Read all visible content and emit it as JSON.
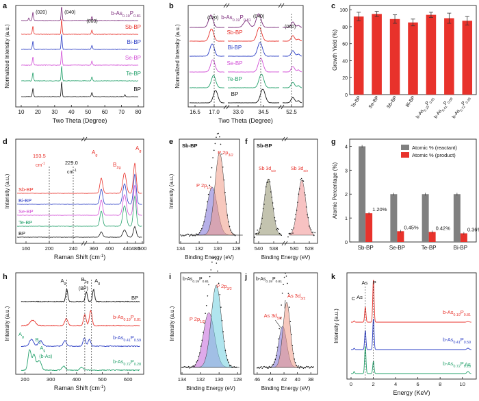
{
  "panels": {
    "a": {
      "letter": "a",
      "xlabel": "Two Theta (Degree)",
      "ylabel": "Normalized Intensity (a.u.)",
      "xticks": [
        "10",
        "20",
        "30",
        "40",
        "50",
        "60",
        "70",
        "80"
      ],
      "peak_labels": [
        "(020)",
        "(040)",
        "(060)"
      ],
      "traces": [
        {
          "label": "b-As",
          "sub1": "0.19",
          "mid": "P",
          "sub2": "0.81",
          "color": "#7a2a7a"
        },
        {
          "label": "Sb-BP",
          "color": "#e8322b"
        },
        {
          "label": "Bi-BP",
          "color": "#2a3cc4"
        },
        {
          "label": "Se-BP",
          "color": "#d24fd6"
        },
        {
          "label": "Te-BP",
          "color": "#22a06a"
        },
        {
          "label": "BP",
          "color": "#111111"
        }
      ]
    },
    "b": {
      "letter": "b",
      "xlabel": "Two Theta (Degree)",
      "ylabel": "Normalized Intensity (a.u.)",
      "xticks": [
        "16.5",
        "17.0",
        "33.0",
        "34.5",
        "52.5"
      ],
      "peak_labels": [
        "(020)",
        "(040)",
        "(060)"
      ],
      "traces": [
        {
          "label": "b-As",
          "sub1": "0.19",
          "mid": "P",
          "sub2": "0.81",
          "color": "#7a2a7a"
        },
        {
          "label": "Sb-BP",
          "color": "#e8322b"
        },
        {
          "label": "Bi-BP",
          "color": "#2a3cc4"
        },
        {
          "label": "Se-BP",
          "color": "#d24fd6"
        },
        {
          "label": "Te-BP",
          "color": "#22a06a"
        },
        {
          "label": "BP",
          "color": "#111111"
        }
      ]
    },
    "c": {
      "letter": "c",
      "ylabel": "Growth Yield (%)",
      "yticks": [
        "0",
        "20",
        "40",
        "60",
        "80",
        "100"
      ],
      "color": "#e8322b"
    },
    "d": {
      "letter": "d",
      "xlabel": "Raman Shift  (cm",
      "xlabel_sup": "-1",
      "xlabel_end": ")",
      "ylabel": "Intensity (a.u.)",
      "xticks": [
        "160",
        "200",
        "240",
        "360",
        "400",
        "440",
        "480",
        "500"
      ],
      "annotations": [
        "193.5",
        "cm",
        "229.0",
        "cm"
      ],
      "modes": [
        "A",
        "B",
        "A"
      ],
      "traces": [
        {
          "label": "Sb-BP",
          "color": "#e8322b"
        },
        {
          "label": "Bi-BP",
          "color": "#2a3cc4"
        },
        {
          "label": "Se-BP",
          "color": "#d24fd6"
        },
        {
          "label": "Te-BP",
          "color": "#22a06a"
        },
        {
          "label": "BP",
          "color": "#111111"
        }
      ]
    },
    "e": {
      "letter": "e",
      "sample": "Sb-BP",
      "xlabel": "Binding Energy (eV)",
      "ylabel": "Intensity (a.u.)",
      "xticks": [
        "134",
        "132",
        "130",
        "128"
      ],
      "peaks": [
        "P 2p",
        "P 2p"
      ],
      "subs": [
        "1/2",
        "3/2"
      ]
    },
    "f": {
      "letter": "f",
      "sample": "Sb-BP",
      "xlabel": "Binding Energy (eV)",
      "xticks": [
        "540",
        "538",
        "530",
        "528"
      ],
      "peaks": [
        "Sb 3d",
        "Sb 3d"
      ],
      "subs": [
        "5/2",
        "3/2"
      ]
    },
    "g": {
      "letter": "g",
      "ylabel": "Atomic Percentage (%)",
      "yticks": [
        "0",
        "1",
        "2",
        "3",
        "4"
      ],
      "legend": [
        "Atomic % (reactant)",
        "Atomic % (product)"
      ],
      "value_labels": [
        "1.20%",
        "0.45%",
        "0.42%",
        "0.36%"
      ]
    },
    "h": {
      "letter": "h",
      "xlabel": "Raman Shift (cm",
      "xlabel_sup": "-1",
      "xlabel_end": ")",
      "ylabel": "Intensity (a.u.)",
      "xticks": [
        "200",
        "300",
        "400",
        "500",
        "600"
      ],
      "mode_labels": [
        "A",
        "B",
        "A",
        "(BP)",
        "A",
        "B",
        "A",
        "(b-As)"
      ],
      "traces": [
        {
          "label": "BP",
          "color": "#111111"
        },
        {
          "label": "b-As",
          "sub1": "0.19",
          "mid": "P",
          "sub2": "0.81",
          "color": "#e8322b"
        },
        {
          "label": "b-As",
          "sub1": "0.41",
          "mid": "P",
          "sub2": "0.59",
          "color": "#2a3cc4"
        },
        {
          "label": "b-As",
          "sub1": "0.72",
          "mid": "P",
          "sub2": "0.28",
          "color": "#22a06a"
        }
      ]
    },
    "i": {
      "letter": "i",
      "sample": "b-As",
      "sample_sub1": "0.19",
      "sample_mid": "P",
      "sample_sub2": "0.81",
      "xlabel": "Binding Energy (eV)",
      "ylabel": "Intensity (a.u.)",
      "xticks": [
        "134",
        "132",
        "130",
        "128"
      ],
      "peaks": [
        "P 2p",
        "P 2p"
      ],
      "subs": [
        "1/2",
        "3/2"
      ]
    },
    "j": {
      "letter": "j",
      "sample": "b-As",
      "sample_sub1": "0.19",
      "sample_mid": "P",
      "sample_sub2": "0.81",
      "xlabel": "Binding Energy (eV)",
      "xticks": [
        "46",
        "44",
        "42",
        "40",
        "38"
      ],
      "peaks": [
        "As 3d",
        "As 3d"
      ],
      "subs": [
        "5/2",
        "3/2"
      ]
    },
    "k": {
      "letter": "k",
      "xlabel": "Energy (KeV)",
      "ylabel": "Intensity (a.u.)",
      "xticks": [
        "0",
        "2",
        "4",
        "6",
        "8",
        "10"
      ],
      "element_labels": [
        "C",
        "As",
        "As",
        "P",
        "As"
      ],
      "traces": [
        {
          "label": "b-As",
          "sub1": "0.19",
          "mid": "P",
          "sub2": "0.81",
          "color": "#e8322b"
        },
        {
          "label": "b-As",
          "sub1": "0.41",
          "mid": "P",
          "sub2": "0.59",
          "color": "#2a3cc4"
        },
        {
          "label": "b-As",
          "sub1": "0.72",
          "mid": "P",
          "sub2": "0.28",
          "color": "#22a06a"
        }
      ]
    }
  },
  "chart_data": [
    {
      "panel": "c",
      "type": "bar",
      "ylabel": "Growth Yield (%)",
      "ylim": [
        0,
        105
      ],
      "categories": [
        "Te-BP",
        "Se-BP",
        "Sb-BP",
        "Bi-BP",
        "b-As0.19P0.81",
        "b-As0.41P0.59",
        "b-As0.72P0.28"
      ],
      "values": [
        92,
        95,
        89,
        85,
        94,
        90,
        87
      ],
      "errors": [
        5,
        3,
        5,
        4,
        3,
        6,
        5
      ]
    },
    {
      "panel": "g",
      "type": "bar",
      "ylabel": "Atomic Percentage (%)",
      "ylim": [
        0,
        4.3
      ],
      "categories": [
        "Sb-BP",
        "Se-BP",
        "Te-BP",
        "Bi-BP"
      ],
      "series": [
        {
          "name": "Atomic % (reactant)",
          "values": [
            4.0,
            2.0,
            2.0,
            2.0
          ],
          "color": "#808080"
        },
        {
          "name": "Atomic % (product)",
          "values": [
            1.2,
            0.45,
            0.42,
            0.36
          ],
          "color": "#e8322b"
        }
      ]
    }
  ]
}
